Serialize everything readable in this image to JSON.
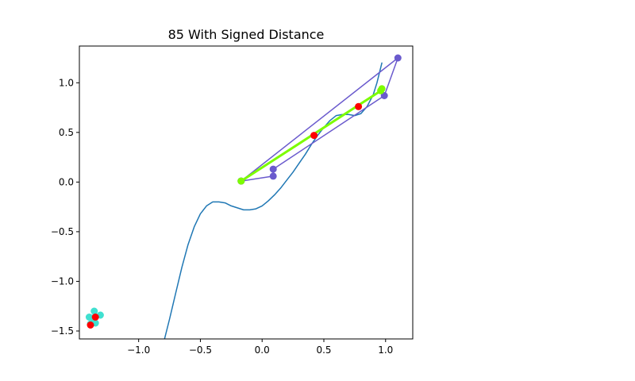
{
  "chart_data": {
    "type": "line",
    "title": "85 With Signed Distance",
    "xlabel": "",
    "ylabel": "",
    "xlim": [
      -1.48,
      1.22
    ],
    "ylim": [
      -1.58,
      1.37
    ],
    "grid": false,
    "legend": "none",
    "x_ticks": [
      {
        "value": -1.0,
        "label": "−1.0"
      },
      {
        "value": -0.5,
        "label": "−0.5"
      },
      {
        "value": 0.0,
        "label": "0.0"
      },
      {
        "value": 0.5,
        "label": "0.5"
      },
      {
        "value": 1.0,
        "label": "1.0"
      }
    ],
    "y_ticks": [
      {
        "value": -1.5,
        "label": "−1.5"
      },
      {
        "value": -1.0,
        "label": "−1.0"
      },
      {
        "value": -0.5,
        "label": "−0.5"
      },
      {
        "value": 0.0,
        "label": "0.0"
      },
      {
        "value": 0.5,
        "label": "0.5"
      },
      {
        "value": 1.0,
        "label": "1.0"
      }
    ],
    "series": [
      {
        "kind": "line",
        "color": "#1f77b4",
        "x": [
          -0.79,
          -0.75,
          -0.7,
          -0.65,
          -0.6,
          -0.55,
          -0.5,
          -0.45,
          -0.4,
          -0.35,
          -0.3,
          -0.25,
          -0.2,
          -0.15,
          -0.1,
          -0.05,
          0.0,
          0.05,
          0.1,
          0.15,
          0.2,
          0.25,
          0.3,
          0.35,
          0.4,
          0.45,
          0.5,
          0.55,
          0.6,
          0.65,
          0.7,
          0.75,
          0.8,
          0.85,
          0.9,
          0.93,
          0.95,
          0.97
        ],
        "y": [
          -1.58,
          -1.38,
          -1.12,
          -0.86,
          -0.63,
          -0.45,
          -0.32,
          -0.24,
          -0.2,
          -0.2,
          -0.21,
          -0.24,
          -0.26,
          -0.28,
          -0.28,
          -0.27,
          -0.24,
          -0.19,
          -0.13,
          -0.06,
          0.02,
          0.1,
          0.19,
          0.28,
          0.38,
          0.47,
          0.55,
          0.62,
          0.67,
          0.68,
          0.68,
          0.67,
          0.69,
          0.76,
          0.88,
          1.0,
          1.1,
          1.2
        ]
      },
      {
        "kind": "line-markers",
        "color": "#6a5acd",
        "x": [
          -0.17,
          0.09,
          0.09,
          0.99,
          1.1,
          -0.17
        ],
        "y": [
          0.01,
          0.06,
          0.13,
          0.87,
          1.25,
          0.01
        ]
      },
      {
        "kind": "line",
        "color": "#7cfc00",
        "x": [
          -0.17,
          0.95,
          0.97
        ],
        "y": [
          0.01,
          0.91,
          0.93
        ]
      },
      {
        "kind": "markers",
        "color": "#7cfc00",
        "x": [
          -0.17,
          0.96,
          0.97
        ],
        "y": [
          0.01,
          0.92,
          0.94
        ]
      },
      {
        "kind": "markers",
        "color": "#40e0d0",
        "x": [
          -1.36,
          -1.4,
          -1.39,
          -1.31,
          -1.35,
          -1.37
        ],
        "y": [
          -1.3,
          -1.36,
          -1.43,
          -1.34,
          -1.42,
          -1.37
        ]
      },
      {
        "kind": "markers",
        "color": "#ff0000",
        "x": [
          0.42,
          0.78,
          -1.35,
          -1.39
        ],
        "y": [
          0.47,
          0.76,
          -1.36,
          -1.44
        ]
      }
    ]
  }
}
